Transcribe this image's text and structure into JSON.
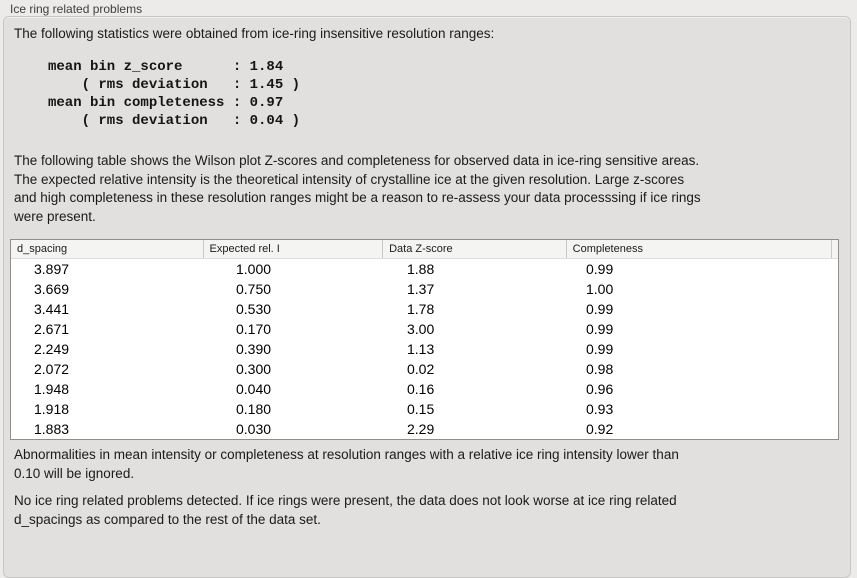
{
  "panel": {
    "title": "Ice ring related problems"
  },
  "intro_text": "The following statistics were obtained from ice-ring insensitive resolution ranges:",
  "stats_block": {
    "text": "mean bin z_score      : 1.84\n    ( rms deviation   : 1.45 )\nmean bin completeness : 0.97\n    ( rms deviation   : 0.04 )",
    "mean_bin_z_score": "1.84",
    "z_score_rms_deviation": "1.45",
    "mean_bin_completeness": "0.97",
    "completeness_rms_deviation": "0.04"
  },
  "table_intro": "The following table shows the Wilson plot Z-scores and completeness for observed data in ice-ring sensitive areas.\nThe expected relative intensity is the theoretical intensity of crystalline ice at the given resolution. Large z-scores\nand high completeness in these resolution ranges might be a reason to re-assess your data processsing if ice rings\nwere present.",
  "table": {
    "columns": [
      "d_spacing",
      "Expected rel. I",
      "Data Z-score",
      "Completeness"
    ],
    "rows": [
      [
        "3.897",
        "1.000",
        "1.88",
        "0.99"
      ],
      [
        "3.669",
        "0.750",
        "1.37",
        "1.00"
      ],
      [
        "3.441",
        "0.530",
        "1.78",
        "0.99"
      ],
      [
        "2.671",
        "0.170",
        "3.00",
        "0.99"
      ],
      [
        "2.249",
        "0.390",
        "1.13",
        "0.99"
      ],
      [
        "2.072",
        "0.300",
        "0.02",
        "0.98"
      ],
      [
        "1.948",
        "0.040",
        "0.16",
        "0.96"
      ],
      [
        "1.918",
        "0.180",
        "0.15",
        "0.93"
      ],
      [
        "1.883",
        "0.030",
        "2.29",
        "0.92"
      ]
    ]
  },
  "notes": {
    "ignore_threshold_note": "Abnormalities in mean intensity or completeness at resolution ranges with a relative ice ring intensity lower than\n0.10 will be ignored.",
    "conclusion": "No ice ring related problems detected. If ice rings were present, the data does not look worse at ice ring related\nd_spacings as compared to the rest of the data set."
  },
  "colors": {
    "page_background": "#ecebea",
    "panel_background": "#e1e0df",
    "panel_border": "#c6c6c5",
    "table_border": "#8e8e8e",
    "table_header_background": "#f4f4f3",
    "text": "#1a1a1a"
  }
}
